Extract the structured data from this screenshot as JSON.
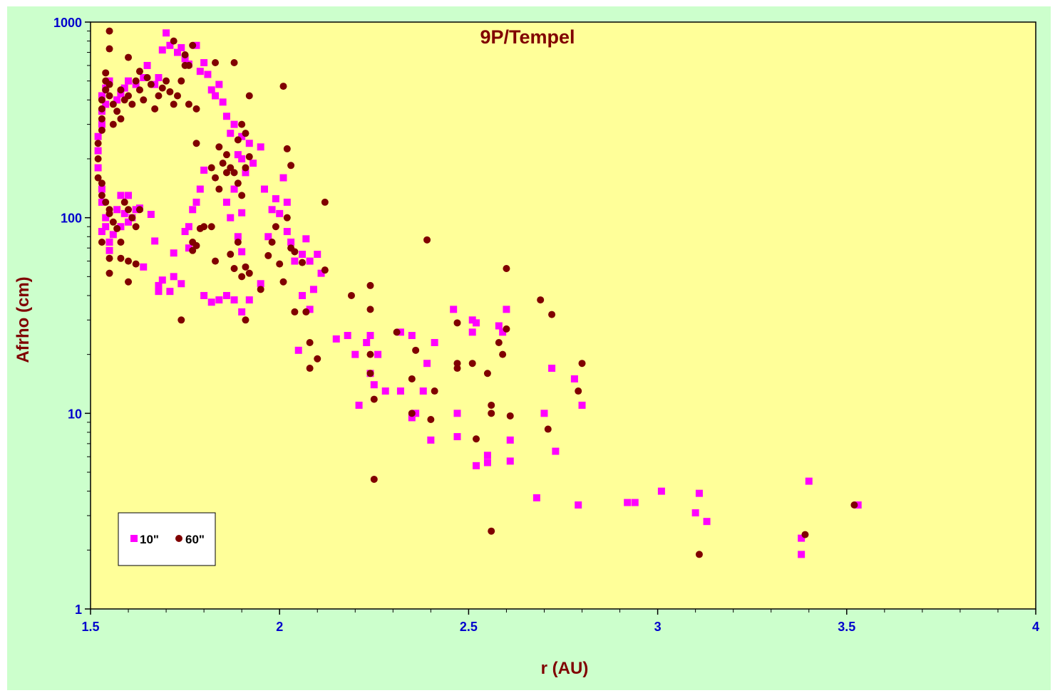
{
  "chart_data": {
    "type": "scatter",
    "title": "9P/Tempel",
    "xlabel": "r (AU)",
    "ylabel": "Afrho (cm)",
    "xlim": [
      1.5,
      4
    ],
    "ylim": [
      1,
      1000
    ],
    "yscale": "log",
    "x_ticks": [
      1.5,
      2,
      2.5,
      3,
      3.5,
      4
    ],
    "x_tick_labels": [
      "1.5",
      "2",
      "2.5",
      "3",
      "3.5",
      "4"
    ],
    "y_ticks": [
      1,
      10,
      100,
      1000
    ],
    "y_tick_labels": [
      "1",
      "10",
      "100",
      "1000"
    ],
    "grid": false,
    "legend_position": "bottom-left",
    "colors": {
      "plot_bg": "#ffff99",
      "chart_bg": "#ccffcc",
      "tick_text": "#0000cc",
      "title_text": "#800000"
    },
    "series": [
      {
        "name": "10\"",
        "marker": "square",
        "color": "#ff00ff",
        "points": [
          [
            1.52,
            180
          ],
          [
            1.52,
            220
          ],
          [
            1.52,
            260
          ],
          [
            1.53,
            300
          ],
          [
            1.53,
            350
          ],
          [
            1.53,
            420
          ],
          [
            1.54,
            380
          ],
          [
            1.54,
            460
          ],
          [
            1.55,
            500
          ],
          [
            1.53,
            140
          ],
          [
            1.53,
            120
          ],
          [
            1.54,
            100
          ],
          [
            1.53,
            85
          ],
          [
            1.54,
            90
          ],
          [
            1.55,
            75
          ],
          [
            1.55,
            68
          ],
          [
            1.56,
            82
          ],
          [
            1.57,
            110
          ],
          [
            1.58,
            130
          ],
          [
            1.58,
            90
          ],
          [
            1.59,
            105
          ],
          [
            1.6,
            95
          ],
          [
            1.61,
            100
          ],
          [
            1.62,
            110
          ],
          [
            1.63,
            112
          ],
          [
            1.6,
            130
          ],
          [
            1.57,
            400
          ],
          [
            1.58,
            430
          ],
          [
            1.59,
            460
          ],
          [
            1.6,
            500
          ],
          [
            1.62,
            480
          ],
          [
            1.64,
            520
          ],
          [
            1.65,
            600
          ],
          [
            1.67,
            480
          ],
          [
            1.68,
            520
          ],
          [
            1.69,
            720
          ],
          [
            1.7,
            880
          ],
          [
            1.71,
            760
          ],
          [
            1.73,
            700
          ],
          [
            1.74,
            740
          ],
          [
            1.75,
            650
          ],
          [
            1.76,
            610
          ],
          [
            1.78,
            760
          ],
          [
            1.79,
            560
          ],
          [
            1.8,
            620
          ],
          [
            1.81,
            540
          ],
          [
            1.82,
            450
          ],
          [
            1.83,
            420
          ],
          [
            1.84,
            480
          ],
          [
            1.85,
            390
          ],
          [
            1.86,
            330
          ],
          [
            1.87,
            270
          ],
          [
            1.88,
            300
          ],
          [
            1.89,
            210
          ],
          [
            1.9,
            260
          ],
          [
            1.9,
            200
          ],
          [
            1.91,
            170
          ],
          [
            1.92,
            240
          ],
          [
            1.93,
            190
          ],
          [
            1.95,
            230
          ],
          [
            1.96,
            140
          ],
          [
            1.97,
            80
          ],
          [
            1.98,
            110
          ],
          [
            1.99,
            125
          ],
          [
            2.0,
            105
          ],
          [
            2.01,
            160
          ],
          [
            2.02,
            120
          ],
          [
            2.02,
            85
          ],
          [
            2.03,
            75
          ],
          [
            2.04,
            60
          ],
          [
            2.06,
            65
          ],
          [
            2.07,
            78
          ],
          [
            2.08,
            60
          ],
          [
            2.1,
            65
          ],
          [
            2.11,
            52
          ],
          [
            1.79,
            140
          ],
          [
            1.8,
            175
          ],
          [
            1.78,
            120
          ],
          [
            1.77,
            110
          ],
          [
            1.76,
            90
          ],
          [
            1.75,
            85
          ],
          [
            1.76,
            70
          ],
          [
            1.72,
            66
          ],
          [
            1.72,
            50
          ],
          [
            1.69,
            48
          ],
          [
            1.71,
            42
          ],
          [
            1.68,
            45
          ],
          [
            1.74,
            46
          ],
          [
            1.8,
            40
          ],
          [
            1.82,
            37
          ],
          [
            1.84,
            38
          ],
          [
            1.86,
            40
          ],
          [
            1.88,
            38
          ],
          [
            1.9,
            33
          ],
          [
            1.92,
            38
          ],
          [
            1.95,
            46
          ],
          [
            1.9,
            106
          ],
          [
            1.89,
            80
          ],
          [
            1.9,
            67
          ],
          [
            1.87,
            100
          ],
          [
            1.86,
            120
          ],
          [
            1.88,
            140
          ],
          [
            1.64,
            56
          ],
          [
            1.66,
            104
          ],
          [
            1.67,
            76
          ],
          [
            1.68,
            42
          ],
          [
            2.05,
            21
          ],
          [
            2.06,
            40
          ],
          [
            2.08,
            34
          ],
          [
            2.09,
            43
          ],
          [
            2.15,
            24
          ],
          [
            2.18,
            25
          ],
          [
            2.2,
            20
          ],
          [
            2.21,
            11
          ],
          [
            2.23,
            23
          ],
          [
            2.24,
            25
          ],
          [
            2.24,
            16
          ],
          [
            2.25,
            14
          ],
          [
            2.26,
            20
          ],
          [
            2.28,
            13
          ],
          [
            2.32,
            26
          ],
          [
            2.32,
            13
          ],
          [
            2.35,
            25
          ],
          [
            2.35,
            9.5
          ],
          [
            2.36,
            10
          ],
          [
            2.38,
            13
          ],
          [
            2.39,
            18
          ],
          [
            2.4,
            7.3
          ],
          [
            2.41,
            23
          ],
          [
            2.46,
            34
          ],
          [
            2.47,
            10
          ],
          [
            2.47,
            7.6
          ],
          [
            2.51,
            30
          ],
          [
            2.51,
            26
          ],
          [
            2.52,
            29
          ],
          [
            2.52,
            5.4
          ],
          [
            2.55,
            5.6
          ],
          [
            2.55,
            6.1
          ],
          [
            2.58,
            28
          ],
          [
            2.59,
            26
          ],
          [
            2.6,
            34
          ],
          [
            2.61,
            7.3
          ],
          [
            2.61,
            5.7
          ],
          [
            2.68,
            3.7
          ],
          [
            2.7,
            10
          ],
          [
            2.72,
            17
          ],
          [
            2.73,
            6.4
          ],
          [
            2.78,
            15
          ],
          [
            2.79,
            3.4
          ],
          [
            2.8,
            11
          ],
          [
            2.92,
            3.5
          ],
          [
            2.94,
            3.5
          ],
          [
            3.01,
            4.0
          ],
          [
            3.1,
            3.1
          ],
          [
            3.11,
            3.9
          ],
          [
            3.13,
            2.8
          ],
          [
            3.38,
            2.3
          ],
          [
            3.38,
            1.9
          ],
          [
            3.4,
            4.5
          ],
          [
            3.53,
            3.4
          ]
        ]
      },
      {
        "name": "60\"",
        "marker": "circle",
        "color": "#800000",
        "points": [
          [
            1.52,
            160
          ],
          [
            1.52,
            200
          ],
          [
            1.52,
            240
          ],
          [
            1.53,
            280
          ],
          [
            1.53,
            320
          ],
          [
            1.53,
            360
          ],
          [
            1.53,
            400
          ],
          [
            1.54,
            450
          ],
          [
            1.54,
            500
          ],
          [
            1.54,
            550
          ],
          [
            1.55,
            420
          ],
          [
            1.55,
            480
          ],
          [
            1.56,
            380
          ],
          [
            1.56,
            300
          ],
          [
            1.57,
            350
          ],
          [
            1.58,
            320
          ],
          [
            1.58,
            450
          ],
          [
            1.59,
            400
          ],
          [
            1.6,
            420
          ],
          [
            1.61,
            380
          ],
          [
            1.62,
            500
          ],
          [
            1.63,
            450
          ],
          [
            1.64,
            400
          ],
          [
            1.65,
            520
          ],
          [
            1.66,
            480
          ],
          [
            1.67,
            360
          ],
          [
            1.68,
            420
          ],
          [
            1.69,
            460
          ],
          [
            1.7,
            500
          ],
          [
            1.71,
            440
          ],
          [
            1.72,
            380
          ],
          [
            1.73,
            420
          ],
          [
            1.74,
            500
          ],
          [
            1.75,
            600
          ],
          [
            1.76,
            380
          ],
          [
            1.78,
            360
          ],
          [
            1.55,
            900
          ],
          [
            1.55,
            730
          ],
          [
            1.6,
            660
          ],
          [
            1.63,
            560
          ],
          [
            1.72,
            800
          ],
          [
            1.75,
            680
          ],
          [
            1.76,
            600
          ],
          [
            1.77,
            760
          ],
          [
            1.83,
            620
          ],
          [
            1.88,
            620
          ],
          [
            1.92,
            420
          ],
          [
            2.01,
            470
          ],
          [
            1.53,
            150
          ],
          [
            1.53,
            130
          ],
          [
            1.54,
            120
          ],
          [
            1.55,
            110
          ],
          [
            1.55,
            105
          ],
          [
            1.56,
            95
          ],
          [
            1.57,
            88
          ],
          [
            1.58,
            75
          ],
          [
            1.59,
            120
          ],
          [
            1.6,
            110
          ],
          [
            1.61,
            100
          ],
          [
            1.62,
            90
          ],
          [
            1.63,
            110
          ],
          [
            1.53,
            75
          ],
          [
            1.55,
            62
          ],
          [
            1.58,
            62
          ],
          [
            1.6,
            60
          ],
          [
            1.62,
            58
          ],
          [
            1.55,
            52
          ],
          [
            1.6,
            47
          ],
          [
            1.78,
            240
          ],
          [
            1.82,
            180
          ],
          [
            1.83,
            160
          ],
          [
            1.84,
            140
          ],
          [
            1.85,
            190
          ],
          [
            1.86,
            210
          ],
          [
            1.87,
            180
          ],
          [
            1.88,
            170
          ],
          [
            1.89,
            150
          ],
          [
            1.9,
            130
          ],
          [
            1.91,
            180
          ],
          [
            1.92,
            205
          ],
          [
            1.89,
            250
          ],
          [
            1.9,
            300
          ],
          [
            1.91,
            270
          ],
          [
            1.84,
            230
          ],
          [
            1.86,
            170
          ],
          [
            1.8,
            90
          ],
          [
            1.79,
            88
          ],
          [
            1.82,
            90
          ],
          [
            1.83,
            60
          ],
          [
            1.77,
            75
          ],
          [
            1.78,
            72
          ],
          [
            1.77,
            68
          ],
          [
            1.74,
            30
          ],
          [
            1.87,
            65
          ],
          [
            1.89,
            75
          ],
          [
            1.88,
            55
          ],
          [
            1.9,
            50
          ],
          [
            1.91,
            56
          ],
          [
            1.92,
            52
          ],
          [
            1.91,
            30
          ],
          [
            1.95,
            43
          ],
          [
            1.97,
            64
          ],
          [
            1.98,
            75
          ],
          [
            1.99,
            90
          ],
          [
            2.0,
            58
          ],
          [
            2.01,
            47
          ],
          [
            2.02,
            100
          ],
          [
            2.02,
            225
          ],
          [
            2.03,
            185
          ],
          [
            2.03,
            70
          ],
          [
            2.04,
            67
          ],
          [
            2.04,
            33
          ],
          [
            2.06,
            59
          ],
          [
            2.07,
            33
          ],
          [
            2.08,
            23
          ],
          [
            2.08,
            17
          ],
          [
            2.1,
            19
          ],
          [
            2.12,
            120
          ],
          [
            2.12,
            54
          ],
          [
            2.19,
            40
          ],
          [
            2.24,
            45
          ],
          [
            2.24,
            34
          ],
          [
            2.24,
            20
          ],
          [
            2.24,
            16
          ],
          [
            2.25,
            11.8
          ],
          [
            2.25,
            4.6
          ],
          [
            2.31,
            26
          ],
          [
            2.35,
            15
          ],
          [
            2.35,
            10
          ],
          [
            2.36,
            21
          ],
          [
            2.39,
            77
          ],
          [
            2.4,
            9.3
          ],
          [
            2.41,
            13
          ],
          [
            2.47,
            29
          ],
          [
            2.47,
            18
          ],
          [
            2.47,
            17
          ],
          [
            2.51,
            18
          ],
          [
            2.52,
            7.4
          ],
          [
            2.55,
            16
          ],
          [
            2.56,
            10
          ],
          [
            2.56,
            11
          ],
          [
            2.56,
            2.5
          ],
          [
            2.58,
            23
          ],
          [
            2.59,
            20
          ],
          [
            2.6,
            55
          ],
          [
            2.6,
            27
          ],
          [
            2.61,
            9.7
          ],
          [
            2.69,
            38
          ],
          [
            2.71,
            8.3
          ],
          [
            2.72,
            32
          ],
          [
            2.79,
            13
          ],
          [
            2.8,
            18
          ],
          [
            3.11,
            1.9
          ],
          [
            3.39,
            2.4
          ],
          [
            3.52,
            3.4
          ]
        ]
      }
    ]
  }
}
